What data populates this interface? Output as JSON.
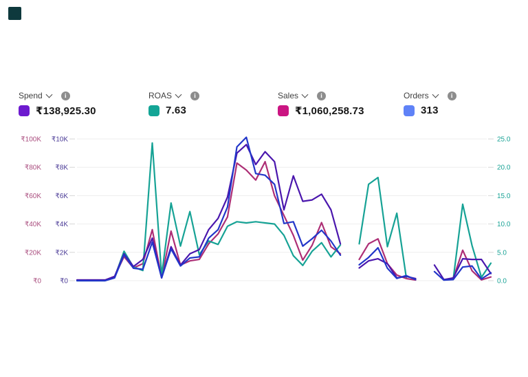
{
  "brand": {
    "logo_color": "#0e393d"
  },
  "metrics": [
    {
      "id": "spend",
      "label": "Spend",
      "value": "₹138,925.30",
      "color": "#6d1acf"
    },
    {
      "id": "roas",
      "label": "ROAS",
      "value": "7.63",
      "color": "#13a596"
    },
    {
      "id": "sales",
      "label": "Sales",
      "value": "₹1,060,258.73",
      "color": "#cb1582"
    },
    {
      "id": "orders",
      "label": "Orders",
      "value": "313",
      "color": "#5f82f7"
    }
  ],
  "chart_data": {
    "type": "line",
    "x_count": 45,
    "grid": true,
    "legend_position": "top",
    "grid_color": "#ededed",
    "tick_color": "#d6d6d6",
    "axes": {
      "left_outer": {
        "metric": "Sales",
        "unit": "₹",
        "max": 100,
        "ticks": [
          "₹100K",
          "₹80K",
          "₹60K",
          "₹40K",
          "₹20K",
          "₹0"
        ],
        "color": "#aa4e7f"
      },
      "left_inner": {
        "metric": "Spend",
        "unit": "₹",
        "max": 10,
        "ticks": [
          "₹10K",
          "₹8K",
          "₹6K",
          "₹4K",
          "₹2K",
          "₹0"
        ],
        "color": "#4a3a96"
      },
      "right": {
        "metric": "ROAS",
        "max": 25,
        "ticks": [
          "25.0",
          "20.0",
          "15.0",
          "10.0",
          "5.0",
          "0.0"
        ],
        "color": "#1aa396"
      }
    },
    "series": [
      {
        "name": "Sales",
        "unit": "₹K",
        "axis_max": 100,
        "color": "#ad2e75",
        "values": [
          0.5,
          0.5,
          0.5,
          0.5,
          3,
          17,
          9,
          12,
          36,
          2,
          35,
          11,
          14,
          15,
          26,
          33,
          45,
          83,
          78,
          71,
          84,
          60,
          46,
          32,
          14.5,
          25,
          41,
          24,
          19,
          null,
          15,
          26,
          29.5,
          12,
          4,
          1.5,
          0.5,
          null,
          null,
          null,
          1.5,
          21.5,
          7,
          0.6,
          2.6
        ]
      },
      {
        "name": "ROAS",
        "axis_max": 25,
        "color": "#16a295",
        "values": [
          0,
          0,
          0,
          0,
          0.6,
          5.2,
          2.4,
          1.8,
          24.3,
          0.9,
          13.7,
          6.1,
          12.2,
          4.6,
          7.0,
          6.4,
          9.6,
          10.4,
          10.2,
          10.4,
          10.2,
          10.0,
          8.0,
          4.4,
          2.7,
          5.2,
          6.7,
          4.2,
          6.3,
          null,
          6.5,
          17.0,
          18.2,
          6.0,
          11.9,
          0.6,
          null,
          null,
          null,
          null,
          0.3,
          13.5,
          6.2,
          0.6,
          3.1
        ]
      },
      {
        "name": "Spend",
        "unit": "₹K",
        "axis_max": 10,
        "color": "#4a16ad",
        "values": [
          0.05,
          0.05,
          0.05,
          0.05,
          0.3,
          1.9,
          1.0,
          1.5,
          3.0,
          0.2,
          2.4,
          1.1,
          1.9,
          2.2,
          3.6,
          4.4,
          5.9,
          9.0,
          9.6,
          8.2,
          9.1,
          8.4,
          5.0,
          7.4,
          5.6,
          5.7,
          6.1,
          5.0,
          2.6,
          null,
          0.9,
          1.4,
          1.55,
          1.2,
          0.2,
          0.3,
          0.15,
          null,
          1.1,
          0.08,
          0.2,
          1.55,
          1.5,
          1.5,
          0.5
        ]
      },
      {
        "name": "Orders",
        "axis_max": 25,
        "color": "#2236c9",
        "values": [
          0,
          0,
          0,
          0,
          0.5,
          4.6,
          2.2,
          2.0,
          6.8,
          0.5,
          5.6,
          2.6,
          4.0,
          4.2,
          7.5,
          9.0,
          13.0,
          23.6,
          25.3,
          18.9,
          18.6,
          17.0,
          10.1,
          10.4,
          6.1,
          7.4,
          8.9,
          7.0,
          4.5,
          null,
          2.8,
          4.1,
          5.8,
          2.2,
          0.4,
          0.9,
          0.2,
          null,
          1.6,
          0.1,
          0.2,
          2.4,
          2.6,
          0.3,
          1.4
        ]
      }
    ]
  }
}
